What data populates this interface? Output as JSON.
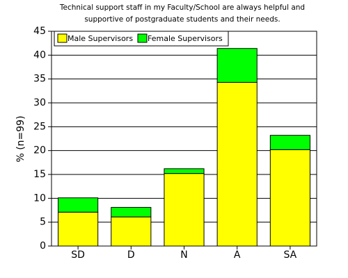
{
  "chart_data": {
    "type": "stacked-bar",
    "title": [
      "Technical support staff in my Faculty/School are always helpful and",
      "supportive of postgraduate students and their needs."
    ],
    "y_label": "% (n=99)",
    "categories": [
      "SD",
      "D",
      "N",
      "A",
      "SA"
    ],
    "series": [
      {
        "name": "Male Supervisors",
        "color": "#ffff00",
        "values": [
          7.1,
          6.1,
          15.2,
          34.3,
          20.2
        ]
      },
      {
        "name": "Female Supervisors",
        "color": "#00ff00",
        "values": [
          3.0,
          2.0,
          1.0,
          7.1,
          3.0
        ]
      }
    ],
    "ylim": [
      0,
      45
    ],
    "yticks": [
      0,
      5,
      10,
      15,
      20,
      25,
      30,
      35,
      40,
      45
    ],
    "grid": true,
    "legend": "top-left"
  }
}
